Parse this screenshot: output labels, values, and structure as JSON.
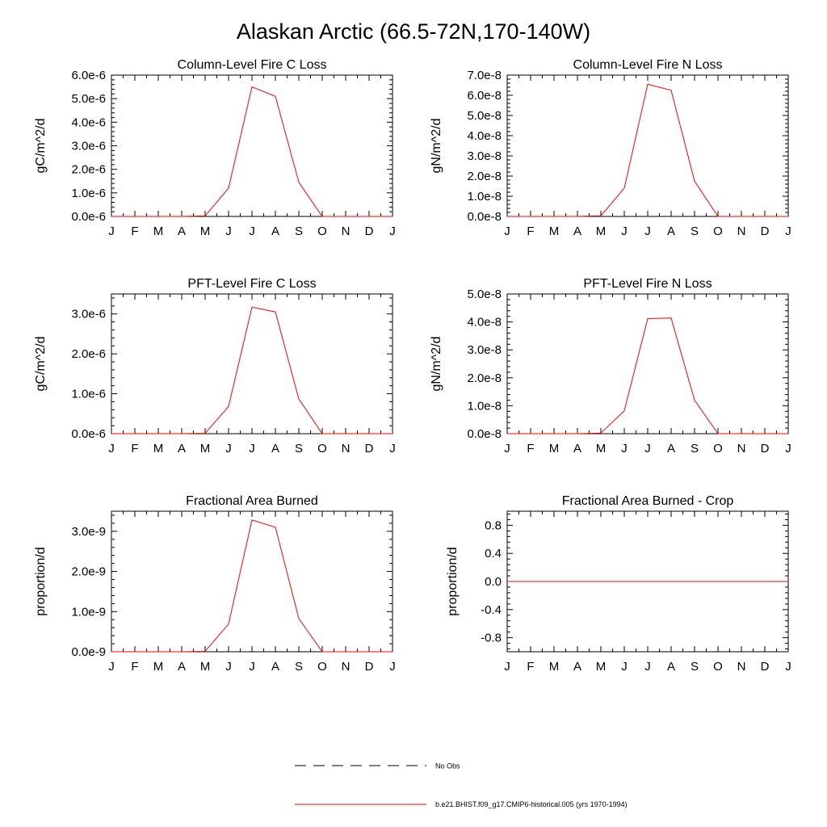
{
  "title": "Alaskan Arctic (66.5-72N,170-140W)",
  "months": [
    "J",
    "F",
    "M",
    "A",
    "M",
    "J",
    "J",
    "A",
    "S",
    "O",
    "N",
    "D",
    "J"
  ],
  "chart_data": [
    {
      "type": "line",
      "title": "Column-Level Fire C Loss",
      "ylabel": "gC/m^2/d",
      "ylim": [
        0,
        6e-06
      ],
      "yticks": [
        0,
        1e-06,
        2e-06,
        3e-06,
        4e-06,
        5e-06,
        6e-06
      ],
      "ytick_labels": [
        "0.0e-6",
        "1.0e-6",
        "2.0e-6",
        "3.0e-6",
        "4.0e-6",
        "5.0e-6",
        "6.0e-6"
      ],
      "series": [
        {
          "values": [
            0,
            0,
            0,
            0,
            2e-08,
            1.2e-06,
            5.5e-06,
            5.1e-06,
            1.45e-06,
            0,
            0,
            0,
            0
          ]
        }
      ]
    },
    {
      "type": "line",
      "title": "Column-Level Fire N Loss",
      "ylabel": "gN/m^2/d",
      "ylim": [
        0,
        7e-08
      ],
      "yticks": [
        0,
        1e-08,
        2e-08,
        3e-08,
        4e-08,
        5e-08,
        6e-08,
        7e-08
      ],
      "ytick_labels": [
        "0.0e-8",
        "1.0e-8",
        "2.0e-8",
        "3.0e-8",
        "4.0e-8",
        "5.0e-8",
        "6.0e-8",
        "7.0e-8"
      ],
      "series": [
        {
          "values": [
            0,
            0,
            0,
            0,
            3e-10,
            1.4e-08,
            6.55e-08,
            6.25e-08,
            1.75e-08,
            0,
            0,
            0,
            0
          ]
        }
      ]
    },
    {
      "type": "line",
      "title": "PFT-Level Fire C Loss",
      "ylabel": "gC/m^2/d",
      "ylim": [
        0,
        3.5e-06
      ],
      "yticks": [
        0,
        1e-06,
        2e-06,
        3e-06
      ],
      "ytick_labels": [
        "0.0e-6",
        "1.0e-6",
        "2.0e-6",
        "3.0e-6"
      ],
      "series": [
        {
          "values": [
            0,
            0,
            0,
            0,
            1e-08,
            6.8e-07,
            3.17e-06,
            3.05e-06,
            8.7e-07,
            0,
            0,
            0,
            0
          ]
        }
      ]
    },
    {
      "type": "line",
      "title": "PFT-Level Fire N Loss",
      "ylabel": "gN/m^2/d",
      "ylim": [
        0,
        5e-08
      ],
      "yticks": [
        0,
        1e-08,
        2e-08,
        3e-08,
        4e-08,
        5e-08
      ],
      "ytick_labels": [
        "0.0e-8",
        "1.0e-8",
        "2.0e-8",
        "3.0e-8",
        "4.0e-8",
        "5.0e-8"
      ],
      "series": [
        {
          "values": [
            0,
            0,
            0,
            0,
            2e-10,
            8.2e-09,
            4.12e-08,
            4.14e-08,
            1.2e-08,
            0,
            0,
            0,
            0
          ]
        }
      ]
    },
    {
      "type": "line",
      "title": "Fractional Area Burned",
      "ylabel": "proportion/d",
      "ylim": [
        0,
        3.5e-09
      ],
      "yticks": [
        0,
        1e-09,
        2e-09,
        3e-09
      ],
      "ytick_labels": [
        "0.0e-9",
        "1.0e-9",
        "2.0e-9",
        "3.0e-9"
      ],
      "series": [
        {
          "values": [
            0,
            0,
            0,
            0,
            1e-11,
            6.9e-10,
            3.28e-09,
            3.1e-09,
            8.3e-10,
            0,
            0,
            0,
            0
          ]
        }
      ]
    },
    {
      "type": "line",
      "title": "Fractional Area Burned - Crop",
      "ylabel": "proportion/d",
      "ylim": [
        -1.0,
        1.0
      ],
      "yticks": [
        -0.8,
        -0.4,
        0,
        0.4,
        0.8
      ],
      "ytick_labels": [
        "-0.8",
        "-0.4",
        "0.0",
        "0.4",
        "0.8"
      ],
      "series": [
        {
          "values": [
            0,
            0,
            0,
            0,
            0,
            0,
            0,
            0,
            0,
            0,
            0,
            0,
            0
          ]
        }
      ]
    }
  ],
  "legend": {
    "items": [
      {
        "label": "No Obs",
        "style": "dashed",
        "color": "#000000"
      },
      {
        "label": "b.e21.BHIST.f09_g17.CMIP6-historical.005 (yrs 1970-1994)",
        "style": "solid",
        "color": "#ff0000"
      }
    ]
  },
  "colors": {
    "series": "#ff0000",
    "frame": "#000000"
  }
}
